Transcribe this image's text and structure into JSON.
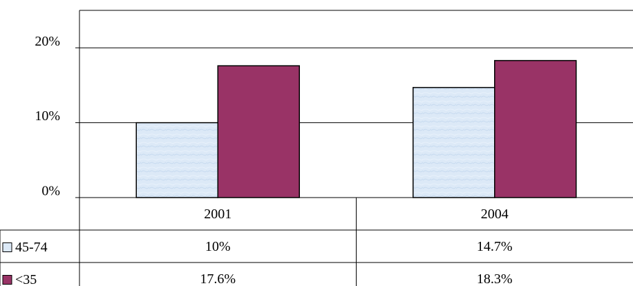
{
  "chart_data": {
    "type": "bar",
    "categories": [
      "2001",
      "2004"
    ],
    "series": [
      {
        "name": "45-74",
        "color": "#dce9f7",
        "values": [
          10,
          14.7
        ],
        "value_labels": [
          "10%",
          "14.7%"
        ]
      },
      {
        "name": "<35",
        "color": "#993366",
        "values": [
          17.6,
          18.3
        ],
        "value_labels": [
          "17.6%",
          "18.3%"
        ]
      }
    ],
    "ylim": [
      0,
      25
    ],
    "yticks": [
      {
        "value": 0,
        "label": "0%"
      },
      {
        "value": 10,
        "label": "10%"
      },
      {
        "value": 20,
        "label": "20%"
      }
    ],
    "grid": true
  }
}
